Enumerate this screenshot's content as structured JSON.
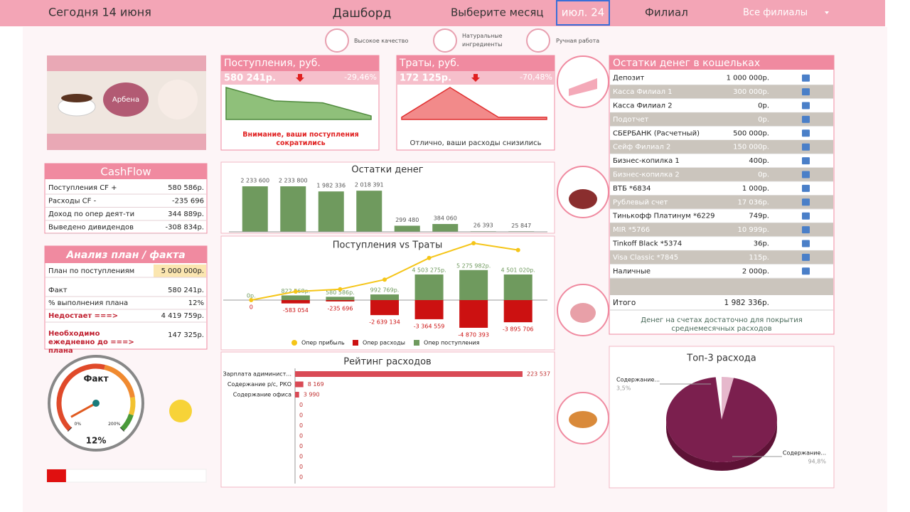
{
  "header": {
    "today": "Сегодня 14 июня",
    "title": "Дашборд",
    "month_label": "Выберите месяц",
    "month": "июл. 24",
    "branch_label": "Филиал",
    "branch": "Все филиалы"
  },
  "badges": [
    "Высокое качество",
    "Натуральные ингредиенты",
    "Ручная работа"
  ],
  "brand": "Арбена",
  "kpis": [
    {
      "title": "Поступления, руб.",
      "value": "580 241р.",
      "change": "-29,46%",
      "note": "Внимание, ваши поступления сократились",
      "trend": [
        100,
        58,
        52,
        11
      ]
    },
    {
      "title": "Траты, руб.",
      "value": "172 125р.",
      "change": "-70,48%",
      "note": "Отлично, ваши расходы снизились",
      "trend": [
        7,
        100,
        7,
        7
      ]
    }
  ],
  "cashflow": {
    "title": "CashFlow",
    "rows": [
      [
        "Поступления CF +",
        "580 586р."
      ],
      [
        "Расходы CF -",
        "-235 696"
      ],
      [
        "Доход по опер деят-ти",
        "344 889р."
      ],
      [
        "Выведено дивидендов",
        "-308 834р."
      ]
    ]
  },
  "plan_fact": {
    "title": "Анализ план / факта",
    "rows": [
      [
        "План по поступлениям",
        "5 000 000р."
      ],
      [
        "Факт",
        "580 241р."
      ],
      [
        "% выполнения плана",
        "12%"
      ],
      [
        "Недостает ===>",
        "4 419 759р."
      ],
      [
        "Необходимо ежедневно до ===> плана",
        "147 325р."
      ]
    ]
  },
  "wallets": {
    "title": "Остатки денег в кошельках",
    "rows": [
      [
        "Депозит",
        "1 000 000р."
      ],
      [
        "Касса Филиал 1",
        "300 000р."
      ],
      [
        "Касса Филиал 2",
        "0р."
      ],
      [
        "Подотчет",
        "0р."
      ],
      [
        "СБЕРБАНК (Расчетный)",
        "500 000р."
      ],
      [
        "Сейф Филиал 2",
        "150 000р."
      ],
      [
        "Бизнес-копилка 1",
        "400р."
      ],
      [
        "Бизнес-копилка 2",
        "0р."
      ],
      [
        "ВТБ *6834",
        "1 000р."
      ],
      [
        "Рублевый счет",
        "17 036р."
      ],
      [
        "Тинькофф Платинум *6229",
        "749р."
      ],
      [
        "MIR *5766",
        "10 999р."
      ],
      [
        "Tinkoff Black *5374",
        "36р."
      ],
      [
        "Visa Classic *7845",
        "115р."
      ],
      [
        "Наличные",
        "2 000р."
      ]
    ],
    "total": [
      "Итого",
      "1 982 336р."
    ],
    "note": "Денег на счетах достаточно для покрытия среднемесячных расходов"
  },
  "chart_data": [
    {
      "type": "gauge",
      "title": "Факт",
      "value": 12,
      "value_label": "12%",
      "ylim": [
        0,
        200
      ],
      "yticks": [
        {
          "value": 0,
          "label": "0%"
        },
        {
          "value": 200,
          "label": "200%"
        }
      ]
    },
    {
      "type": "bar",
      "title": "Остатки денег",
      "categories": [
        null,
        null,
        null,
        null,
        null,
        null,
        null,
        null
      ],
      "values": [
        2233600,
        2233800,
        1982336,
        2018391,
        299480,
        384060,
        26393,
        25847
      ],
      "value_labels": [
        "2 233 600",
        "2 233 800",
        "1 982 336",
        "2 018 391",
        "299 480",
        "384 060",
        "26 393",
        "25 847"
      ],
      "color": "#6f9a5e"
    },
    {
      "type": "combo",
      "title": "Поступления vs Траты",
      "categories": [
        null,
        null,
        null,
        null,
        null,
        null,
        null
      ],
      "series": [
        {
          "name": "Опер прибыль",
          "color": "#f5c518",
          "type": "line",
          "values": [
            0,
            1500000,
            1900000,
            3600000,
            7400000,
            10000000,
            8800000
          ]
        },
        {
          "name": "Опер расходы",
          "color": "#cc1111",
          "values": [
            0,
            -583054,
            -235696,
            -2639134,
            -3364559,
            -4870393,
            -3895706
          ],
          "value_labels": [
            "0",
            "-583 054",
            "-235 696",
            "-2 639 134",
            "-3 364 559",
            "-4 870 393",
            "-3 895 706"
          ]
        },
        {
          "name": "Опер поступления",
          "color": "#6f9a5e",
          "values": [
            0,
            822568,
            580586,
            992769,
            4503275,
            5275982,
            4501020
          ],
          "value_labels": [
            "0р.",
            "822 568р.",
            "580 586р.",
            "992 769р.",
            "4 503 275р.",
            "5 275 982р.",
            "4 501 020р."
          ]
        }
      ]
    },
    {
      "type": "hbar",
      "title": "Рейтинг расходов",
      "categories": [
        "Зарплата адиминист...",
        "Содержание р/с, РКО",
        "Содержание офиса",
        null,
        null,
        null,
        null,
        null,
        null,
        null,
        null
      ],
      "values": [
        223537,
        8169,
        3990,
        0,
        0,
        0,
        0,
        0,
        0,
        0,
        0
      ],
      "value_labels": [
        "223 537",
        "8 169",
        "3 990",
        "0",
        "0",
        "0",
        "0",
        "0",
        "0",
        "0",
        "0"
      ],
      "color": "#d94a55"
    },
    {
      "type": "pie",
      "title": "Топ-3 расхода",
      "categories": [
        "Содержание...",
        "Содержание..."
      ],
      "values": [
        3.5,
        94.8
      ],
      "value_labels": [
        "3,5%",
        "94,8%"
      ],
      "colors": [
        "#e6b8cc",
        "#7b1f4e"
      ]
    }
  ]
}
